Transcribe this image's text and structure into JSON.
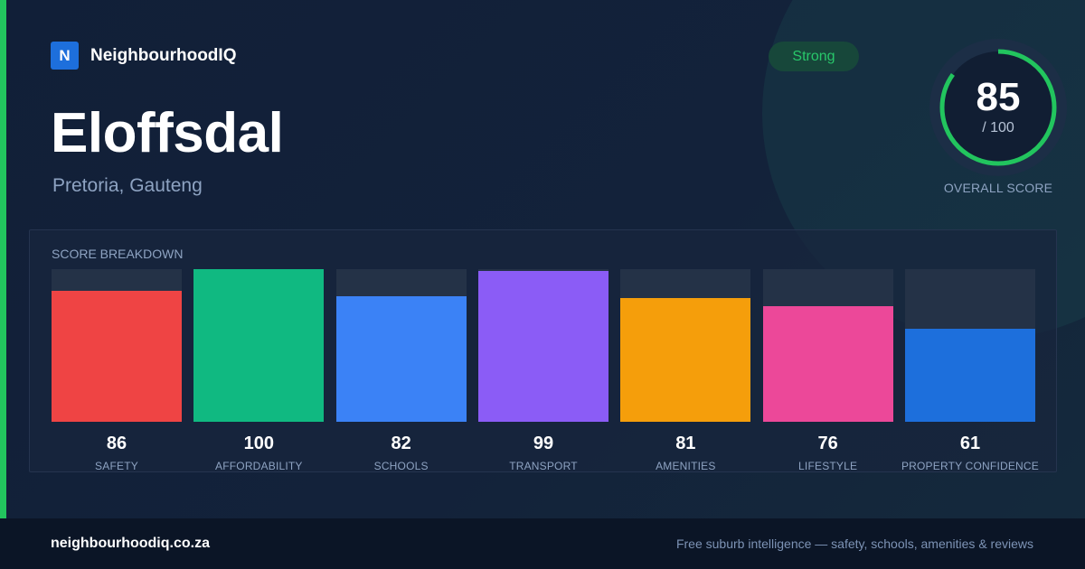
{
  "brand": {
    "logo_letter": "N",
    "name": "NeighbourhoodIQ"
  },
  "suburb": {
    "name": "Eloffsdal",
    "location": "Pretoria, Gauteng"
  },
  "status_badge": {
    "label": "Strong",
    "color": "#28c76a"
  },
  "overall": {
    "score": "85",
    "max_label": "/ 100",
    "score_fraction": 0.85,
    "caption": "OVERALL SCORE",
    "ring_color": "#22c55e"
  },
  "breakdown": {
    "title": "SCORE BREAKDOWN"
  },
  "chart_data": {
    "type": "bar",
    "categories": [
      "SAFETY",
      "AFFORDABILITY",
      "SCHOOLS",
      "TRANSPORT",
      "AMENITIES",
      "LIFESTYLE",
      "PROPERTY CONFIDENCE"
    ],
    "values": [
      86,
      100,
      82,
      99,
      81,
      76,
      61
    ],
    "colors": [
      "#ef4444",
      "#10b981",
      "#3b82f6",
      "#8b5cf6",
      "#f59e0b",
      "#ec4899",
      "#1d6fdc"
    ],
    "ylim": [
      0,
      100
    ],
    "title": "SCORE BREAKDOWN"
  },
  "footer": {
    "domain": "neighbourhoodiq.co.za",
    "tagline": "Free suburb intelligence — safety, schools, amenities & reviews"
  }
}
